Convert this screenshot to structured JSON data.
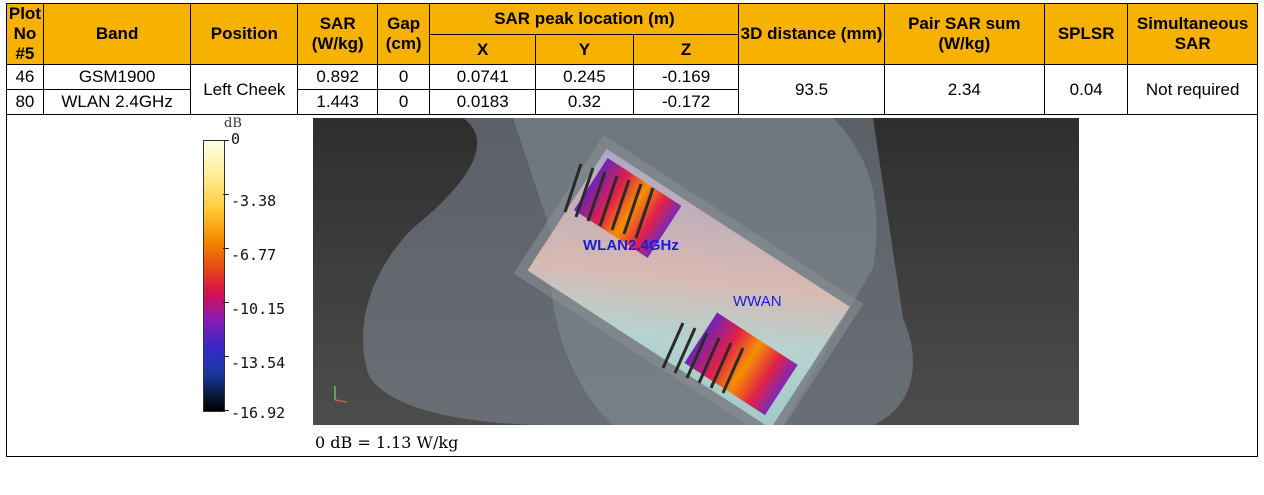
{
  "table": {
    "headers": {
      "plot_no": "Plot No #5",
      "band": "Band",
      "position": "Position",
      "sar": "SAR (W/kg)",
      "gap": "Gap (cm)",
      "peak_location": "SAR peak location (m)",
      "x": "X",
      "y": "Y",
      "z": "Z",
      "distance_3d": "3D distance (mm)",
      "pair_sar_sum": "Pair SAR sum (W/kg)",
      "splsr": "SPLSR",
      "simultaneous": "Simultaneous SAR"
    },
    "rows": [
      {
        "plot": "46",
        "band": "GSM1900",
        "sar": "0.892",
        "gap": "0",
        "x": "0.0741",
        "y": "0.245",
        "z": "-0.169"
      },
      {
        "plot": "80",
        "band": "WLAN 2.4GHz",
        "sar": "1.443",
        "gap": "0",
        "x": "0.0183",
        "y": "0.32",
        "z": "-0.172"
      }
    ],
    "position": "Left Cheek",
    "distance_3d": "93.5",
    "pair_sar_sum": "2.34",
    "splsr": "0.04",
    "simultaneous": "Not required"
  },
  "figure": {
    "colorbar_title": "dB",
    "colorbar_ticks": [
      "0",
      "-3.38",
      "-6.77",
      "-10.15",
      "-13.54",
      "-16.92"
    ],
    "caption": "0 dB = 1.13 W/kg",
    "label_wlan": "WLAN2.4GHz",
    "label_wwan": "WWAN"
  },
  "colors": {
    "header_bg": "#f7b100",
    "label_blue": "#1b1bd8"
  }
}
